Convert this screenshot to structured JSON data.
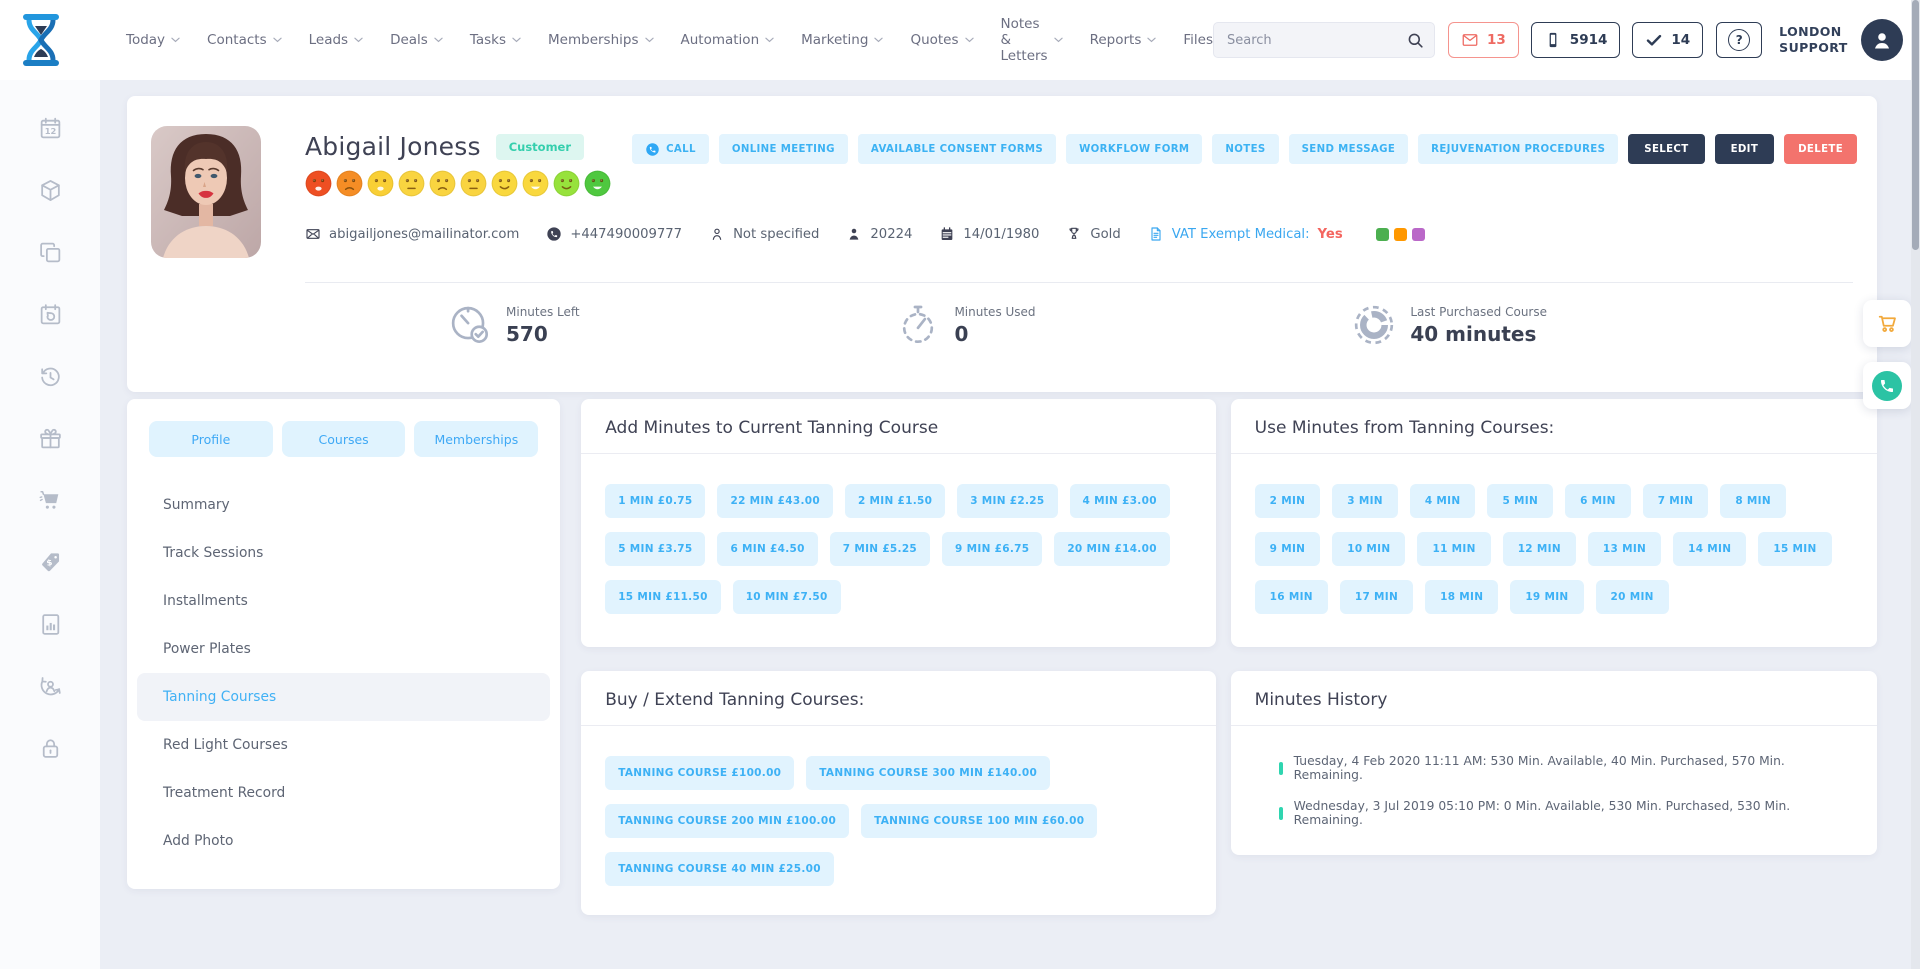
{
  "nav": {
    "items": [
      {
        "label": "Today",
        "chevron": true
      },
      {
        "label": "Contacts",
        "chevron": true
      },
      {
        "label": "Leads",
        "chevron": true
      },
      {
        "label": "Deals",
        "chevron": true
      },
      {
        "label": "Tasks",
        "chevron": true
      },
      {
        "label": "Memberships",
        "chevron": true
      },
      {
        "label": "Automation",
        "chevron": true
      },
      {
        "label": "Marketing",
        "chevron": true
      },
      {
        "label": "Quotes",
        "chevron": true
      },
      {
        "label": "Notes & Letters",
        "chevron": true
      },
      {
        "label": "Reports",
        "chevron": true
      },
      {
        "label": "Files",
        "chevron": false
      }
    ]
  },
  "topbar": {
    "search_placeholder": "Search",
    "badges": [
      {
        "name": "mail-badge",
        "icon": "mail",
        "count": "13",
        "style": "red"
      },
      {
        "name": "phone-badge",
        "icon": "smartphone",
        "count": "5914",
        "style": "dark"
      },
      {
        "name": "tasks-badge",
        "icon": "check",
        "count": "14",
        "style": "dark"
      }
    ],
    "help_label": "?",
    "account_line1": "LONDON",
    "account_line2": "SUPPORT"
  },
  "rail": {
    "icons": [
      {
        "name": "calendar-date-icon",
        "icon": "s-cal12"
      },
      {
        "name": "package-icon",
        "icon": "s-cube"
      },
      {
        "name": "copy-icon",
        "icon": "s-copy"
      },
      {
        "name": "calendar-return-icon",
        "icon": "s-calarrow"
      },
      {
        "name": "history-icon",
        "icon": "s-history"
      },
      {
        "name": "gift-icon",
        "icon": "s-gift"
      },
      {
        "name": "cart-icon",
        "icon": "s-cart"
      },
      {
        "name": "price-tag-icon",
        "icon": "s-tag"
      },
      {
        "name": "report-icon",
        "icon": "s-report"
      },
      {
        "name": "account-sync-icon",
        "icon": "s-personsync"
      },
      {
        "name": "lock-icon",
        "icon": "s-lock"
      }
    ]
  },
  "customer": {
    "name": "Abigail Joness",
    "type_badge": "Customer",
    "moods": [
      {
        "color": "#ee4f23",
        "mouth": "frown-open"
      },
      {
        "color": "#f58d25",
        "mouth": "frown"
      },
      {
        "color": "#f9cf35",
        "mouth": "frown-open"
      },
      {
        "color": "#f9d440",
        "mouth": "flat"
      },
      {
        "color": "#f9d440",
        "mouth": "frown"
      },
      {
        "color": "#f9d440",
        "mouth": "flat"
      },
      {
        "color": "#f9d83e",
        "mouth": "smile"
      },
      {
        "color": "#f9d83e",
        "mouth": "smile-open"
      },
      {
        "color": "#97e23c",
        "mouth": "smile"
      },
      {
        "color": "#4fc83f",
        "mouth": "smile-open"
      }
    ],
    "contact_fields": [
      {
        "name": "email-icon",
        "icon": "envelope",
        "text": "abigailjones@mailinator.com"
      },
      {
        "name": "phone-icon",
        "icon": "phonefill",
        "text": "+447490009777"
      },
      {
        "name": "person-outline-icon",
        "icon": "personout",
        "text": "Not specified"
      },
      {
        "name": "person-icon",
        "icon": "personfill",
        "text": "20224"
      },
      {
        "name": "calendar-icon",
        "icon": "calendarf",
        "text": "14/01/1980"
      },
      {
        "name": "award-icon",
        "icon": "award",
        "text": "Gold"
      },
      {
        "name": "document-icon",
        "icon": "doc",
        "text": "VAT Exempt Medical:",
        "value": "Yes",
        "style": "vat"
      }
    ],
    "tags": [
      "#4caf50",
      "#ff9800",
      "#ba68c8"
    ]
  },
  "actions": [
    {
      "label": "CALL",
      "style": "light",
      "icon": "call"
    },
    {
      "label": "ONLINE MEETING",
      "style": "light"
    },
    {
      "label": "AVAILABLE CONSENT FORMS",
      "style": "light"
    },
    {
      "label": "WORKFLOW FORM",
      "style": "light"
    },
    {
      "label": "NOTES",
      "style": "light"
    },
    {
      "label": "SEND MESSAGE",
      "style": "light"
    },
    {
      "label": "REJUVENATION PROCEDURES",
      "style": "light"
    },
    {
      "label": "SELECT",
      "style": "dark"
    },
    {
      "label": "EDIT",
      "style": "dark"
    },
    {
      "label": "DELETE",
      "style": "danger"
    }
  ],
  "stats": [
    {
      "name": "clock-check-icon",
      "icon": "clockcheck",
      "label": "Minutes Left",
      "value": "570"
    },
    {
      "name": "stopwatch-icon",
      "icon": "stopwatch",
      "label": "Minutes Used",
      "value": "0"
    },
    {
      "name": "donut-chart-icon",
      "icon": "donut",
      "label": "Last Purchased Course",
      "value": "40 minutes"
    }
  ],
  "left_panel": {
    "tabs": [
      "Profile",
      "Courses",
      "Memberships"
    ],
    "menu": [
      "Summary",
      "Track Sessions",
      "Installments",
      "Power Plates",
      "Tanning Courses",
      "Red Light Courses",
      "Treatment Record",
      "Add Photo"
    ],
    "active": "Tanning Courses"
  },
  "add_minutes": {
    "title": "Add Minutes to Current Tanning Course",
    "buttons": [
      "1 MIN £0.75",
      "22 MIN £43.00",
      "2 MIN £1.50",
      "3 MIN £2.25",
      "4 MIN £3.00",
      "5 MIN £3.75",
      "6 MIN £4.50",
      "7 MIN £5.25",
      "9 MIN £6.75",
      "20 MIN £14.00",
      "15 MIN £11.50",
      "10 MIN £7.50"
    ]
  },
  "use_minutes": {
    "title": "Use Minutes from Tanning Courses:",
    "buttons": [
      "2 MIN",
      "3 MIN",
      "4 MIN",
      "5 MIN",
      "6 MIN",
      "7 MIN",
      "8 MIN",
      "9 MIN",
      "10 MIN",
      "11 MIN",
      "12 MIN",
      "13 MIN",
      "14 MIN",
      "15 MIN",
      "16 MIN",
      "17 MIN",
      "18 MIN",
      "19 MIN",
      "20 MIN"
    ]
  },
  "buy_courses": {
    "title": "Buy / Extend Tanning Courses:",
    "buttons": [
      "TANNING COURSE £100.00",
      "TANNING COURSE 300 MIN £140.00",
      "TANNING COURSE 200 MIN £100.00",
      "TANNING COURSE 100 MIN £60.00",
      "TANNING COURSE 40 MIN £25.00"
    ]
  },
  "minutes_history": {
    "title": "Minutes History",
    "entries": [
      "Tuesday, 4 Feb 2020 11:11 AM: 530 Min. Available, 40 Min. Purchased, 570 Min. Remaining.",
      "Wednesday, 3 Jul 2019 05:10 PM: 0 Min. Available, 530 Min. Purchased, 530 Min. Remaining."
    ]
  }
}
